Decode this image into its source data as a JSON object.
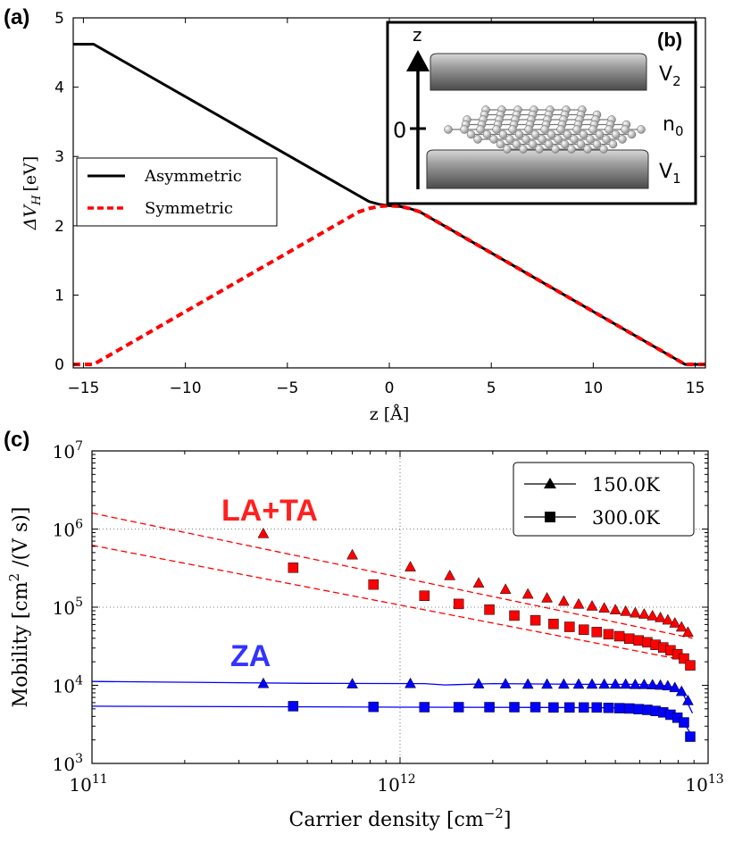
{
  "chart_data": [
    {
      "panel": "(a)",
      "type": "line",
      "xlabel": "z [Å]",
      "ylabel": "ΔV",
      "ylabel_sub": "H",
      "ylabel_unit": "[eV]",
      "xlim": [
        -15.5,
        15.5
      ],
      "ylim": [
        -0.05,
        5
      ],
      "xticks": [
        -15,
        -10,
        -5,
        0,
        5,
        10,
        15
      ],
      "xtick_labels": [
        "−15",
        "−10",
        "−5",
        "0",
        "5",
        "10",
        "15"
      ],
      "yticks": [
        0,
        1,
        2,
        3,
        4,
        5
      ],
      "ytick_labels": [
        "0",
        "1",
        "2",
        "3",
        "4",
        "5"
      ],
      "legend_position": "center-left",
      "series": [
        {
          "name": "Asymmetric",
          "color": "#000000",
          "style": "solid",
          "points": [
            [
              -15.5,
              4.62
            ],
            [
              -14.5,
              4.62
            ],
            [
              -1,
              2.35
            ],
            [
              -0.5,
              2.31
            ],
            [
              0,
              2.29
            ],
            [
              0.5,
              2.28
            ],
            [
              1,
              2.25
            ],
            [
              1.5,
              2.2
            ],
            [
              14.5,
              0.0
            ],
            [
              15.5,
              0.0
            ]
          ]
        },
        {
          "name": "Symmetric",
          "color": "#ff0000",
          "style": "dashed",
          "points": [
            [
              -15.5,
              0.0
            ],
            [
              -14.5,
              0.0
            ],
            [
              -1.5,
              2.2
            ],
            [
              -1,
              2.25
            ],
            [
              -0.5,
              2.28
            ],
            [
              0,
              2.29
            ],
            [
              0.5,
              2.28
            ],
            [
              1,
              2.25
            ],
            [
              1.5,
              2.2
            ],
            [
              14.5,
              0.0
            ],
            [
              15.5,
              0.0
            ]
          ]
        }
      ],
      "inset": {
        "panel": "(b)",
        "axis_label": "z",
        "origin_label": "0",
        "top_plate_label": "V",
        "top_plate_sub": "2",
        "bottom_plate_label": "V",
        "bottom_plate_sub": "1",
        "sheet_label": "n",
        "sheet_sub": "0"
      }
    },
    {
      "panel": "(c)",
      "type": "scatter",
      "xscale": "log",
      "yscale": "log",
      "xlabel": "Carrier density [cm",
      "xlabel_sup": "−2",
      "xlabel_end": "]",
      "ylabel": "Mobility [cm",
      "ylabel_sup": "2",
      "ylabel_end": " /(V s)]",
      "xlim_exp": [
        11,
        13
      ],
      "ylim_exp": [
        3,
        7
      ],
      "xtick_exp": [
        "11",
        "12",
        "13"
      ],
      "ytick_exp": [
        "3",
        "4",
        "5",
        "6",
        "7"
      ],
      "tick_base": "10",
      "grid": "dotted at 10^12, 10^5, 10^6",
      "legend_position": "top-right",
      "legend": [
        {
          "name": "150.0K",
          "marker": "triangle"
        },
        {
          "name": "300.0K",
          "marker": "square"
        }
      ],
      "annotations": [
        {
          "text": "LA+TA",
          "color": "#ff2020"
        },
        {
          "text": "ZA",
          "color": "#3333ff"
        }
      ],
      "series": [
        {
          "name": "LA+TA 150.0K",
          "color": "#ff0000",
          "marker": "triangle",
          "line": "dashed",
          "fit_points": [
            [
              100000000000.0,
              1600000.0
            ],
            [
              8900000000000.0,
              40000.0
            ]
          ],
          "points": [
            [
              360000000000.0,
              880000.0
            ],
            [
              700000000000.0,
              470000.0
            ],
            [
              1080000000000.0,
              330000.0
            ],
            [
              1450000000000.0,
              255000.0
            ],
            [
              1800000000000.0,
              205000.0
            ],
            [
              2200000000000.0,
              170000.0
            ],
            [
              2600000000000.0,
              148000.0
            ],
            [
              3000000000000.0,
              132000.0
            ],
            [
              3400000000000.0,
              120000.0
            ],
            [
              3800000000000.0,
              110000.0
            ],
            [
              4200000000000.0,
              104000.0
            ],
            [
              4600000000000.0,
              98000.0
            ],
            [
              5000000000000.0,
              93000.0
            ],
            [
              5400000000000.0,
              89000.0
            ],
            [
              5800000000000.0,
              85000.0
            ],
            [
              6200000000000.0,
              82000.0
            ],
            [
              6600000000000.0,
              78000.0
            ],
            [
              7000000000000.0,
              74000.0
            ],
            [
              7400000000000.0,
              69000.0
            ],
            [
              7800000000000.0,
              63000.0
            ],
            [
              8200000000000.0,
              56000.0
            ],
            [
              8600000000000.0,
              48000.0
            ]
          ]
        },
        {
          "name": "LA+TA 300.0K",
          "color": "#ff0000",
          "marker": "square",
          "line": "dashed",
          "fit_points": [
            [
              100000000000.0,
              620000.0
            ],
            [
              8900000000000.0,
              20000.0
            ]
          ],
          "points": [
            [
              450000000000.0,
              320000.0
            ],
            [
              820000000000.0,
              195000.0
            ],
            [
              1200000000000.0,
              140000.0
            ],
            [
              1550000000000.0,
              110000.0
            ],
            [
              1950000000000.0,
              93000.0
            ],
            [
              2350000000000.0,
              78000.0
            ],
            [
              2750000000000.0,
              68000.0
            ],
            [
              3150000000000.0,
              61000.0
            ],
            [
              3550000000000.0,
              56000.0
            ],
            [
              3950000000000.0,
              51500.0
            ],
            [
              4350000000000.0,
              48000.0
            ],
            [
              4750000000000.0,
              45000.0
            ],
            [
              5150000000000.0,
              42500.0
            ],
            [
              5550000000000.0,
              39500.0
            ],
            [
              5950000000000.0,
              37500.0
            ],
            [
              6350000000000.0,
              35500.0
            ],
            [
              6750000000000.0,
              33000.0
            ],
            [
              7150000000000.0,
              30500.0
            ],
            [
              7550000000000.0,
              28000.0
            ],
            [
              7950000000000.0,
              25000.0
            ],
            [
              8350000000000.0,
              22000.0
            ],
            [
              8750000000000.0,
              18000.0
            ]
          ]
        },
        {
          "name": "ZA 150.0K",
          "color": "#0000ff",
          "marker": "triangle",
          "line": "solid",
          "line_points": [
            [
              100000000000.0,
              11200.0
            ],
            [
              500000000000.0,
              10600.0
            ],
            [
              1200000000000.0,
              10500.0
            ],
            [
              1400000000000.0,
              10100.0
            ],
            [
              2000000000000.0,
              10500.0
            ],
            [
              4000000000000.0,
              10300.0
            ],
            [
              6000000000000.0,
              10300.0
            ],
            [
              7500000000000.0,
              9800.0
            ],
            [
              8200000000000.0,
              8500.0
            ],
            [
              8900000000000.0,
              4400.0
            ]
          ],
          "points": [
            [
              360000000000.0,
              10600.0
            ],
            [
              700000000000.0,
              10500.0
            ],
            [
              1080000000000.0,
              10600.0
            ],
            [
              1800000000000.0,
              10500.0
            ],
            [
              2200000000000.0,
              10500.0
            ],
            [
              2600000000000.0,
              10400.0
            ],
            [
              3000000000000.0,
              10400.0
            ],
            [
              3400000000000.0,
              10400.0
            ],
            [
              3800000000000.0,
              10400.0
            ],
            [
              4200000000000.0,
              10400.0
            ],
            [
              4600000000000.0,
              10400.0
            ],
            [
              5000000000000.0,
              10400.0
            ],
            [
              5400000000000.0,
              10400.0
            ],
            [
              5800000000000.0,
              10300.0
            ],
            [
              6200000000000.0,
              10300.0
            ],
            [
              6600000000000.0,
              10200.0
            ],
            [
              7000000000000.0,
              10100.0
            ],
            [
              7400000000000.0,
              9900.0
            ],
            [
              7800000000000.0,
              9400.0
            ],
            [
              8200000000000.0,
              8400.0
            ],
            [
              8600000000000.0,
              6400.0
            ]
          ]
        },
        {
          "name": "ZA 300.0K",
          "color": "#0000ff",
          "marker": "square",
          "line": "solid",
          "line_points": [
            [
              100000000000.0,
              5400.0
            ],
            [
              500000000000.0,
              5300.0
            ],
            [
              1000000000000.0,
              5250.0
            ],
            [
              3000000000000.0,
              5200.0
            ],
            [
              5000000000000.0,
              5150.0
            ],
            [
              6500000000000.0,
              4900.0
            ],
            [
              7500000000000.0,
              4400.0
            ],
            [
              8200000000000.0,
              3700.0
            ],
            [
              8900000000000.0,
              2200.0
            ]
          ],
          "points": [
            [
              450000000000.0,
              5400.0
            ],
            [
              820000000000.0,
              5300.0
            ],
            [
              1200000000000.0,
              5250.0
            ],
            [
              1550000000000.0,
              5250.0
            ],
            [
              1950000000000.0,
              5250.0
            ],
            [
              2350000000000.0,
              5250.0
            ],
            [
              2750000000000.0,
              5250.0
            ],
            [
              3150000000000.0,
              5200.0
            ],
            [
              3550000000000.0,
              5200.0
            ],
            [
              3950000000000.0,
              5200.0
            ],
            [
              4350000000000.0,
              5200.0
            ],
            [
              4750000000000.0,
              5150.0
            ],
            [
              5150000000000.0,
              5100.0
            ],
            [
              5550000000000.0,
              5050.0
            ],
            [
              5950000000000.0,
              4950.0
            ],
            [
              6350000000000.0,
              4850.0
            ],
            [
              6750000000000.0,
              4700.0
            ],
            [
              7150000000000.0,
              4500.0
            ],
            [
              7550000000000.0,
              4200.0
            ],
            [
              7950000000000.0,
              3850.0
            ],
            [
              8350000000000.0,
              3350.0
            ],
            [
              8750000000000.0,
              2200.0
            ]
          ]
        }
      ]
    }
  ]
}
